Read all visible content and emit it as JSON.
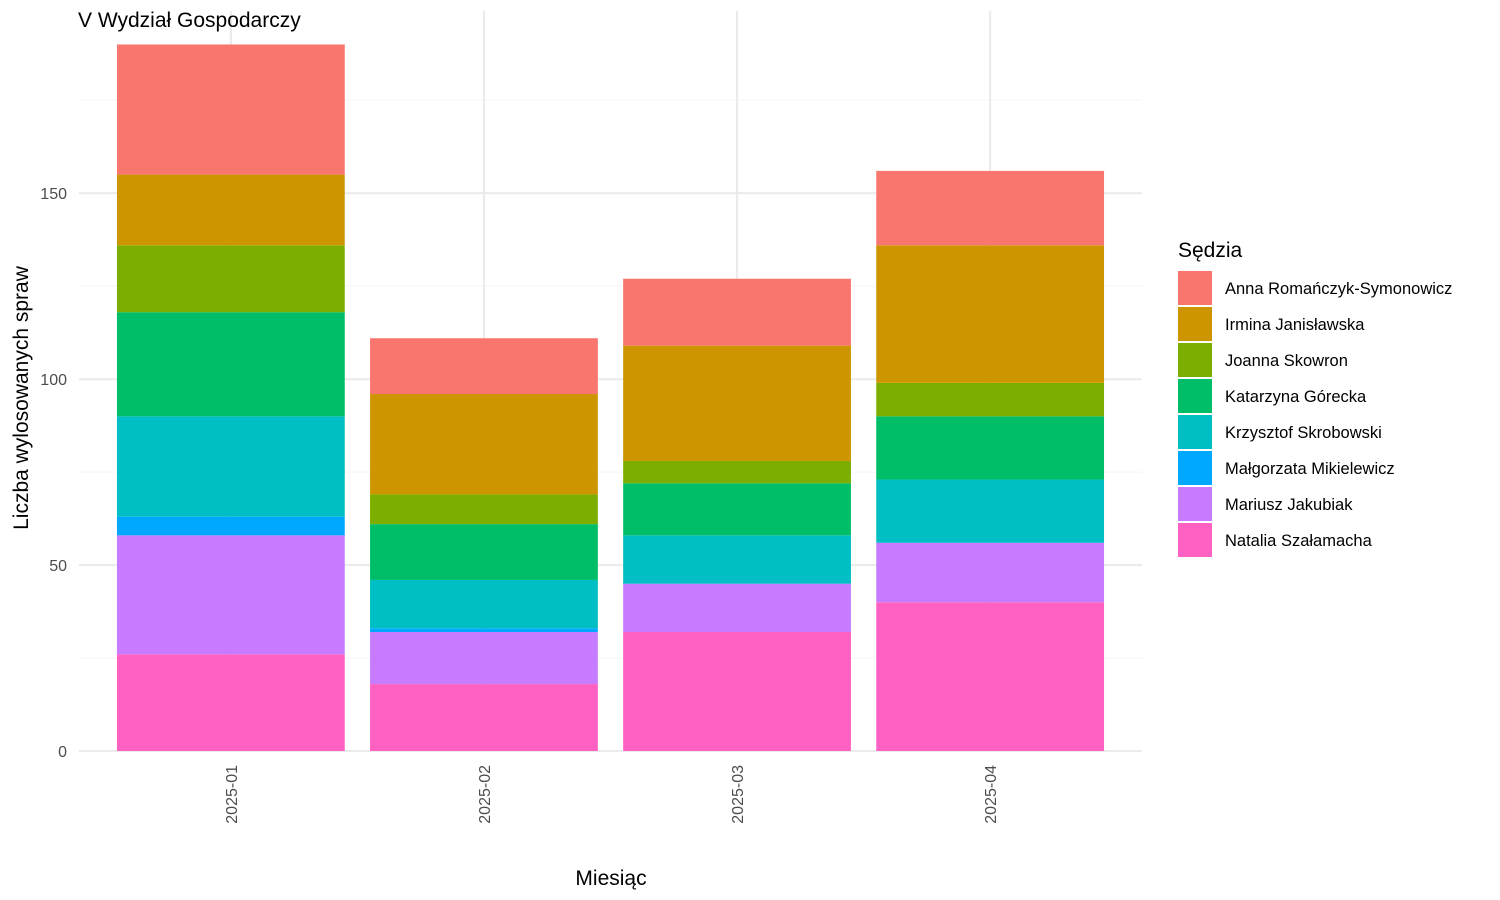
{
  "chart_data": {
    "type": "bar",
    "stacked": true,
    "title": "V Wydział Gospodarczy",
    "xlabel": "Miesiąc",
    "ylabel": "Liczba wylosowanych spraw",
    "categories": [
      "2025-01",
      "2025-02",
      "2025-03",
      "2025-04"
    ],
    "ylim": [
      0,
      199
    ],
    "yticks": [
      0,
      50,
      100,
      150
    ],
    "grid": true,
    "legend": {
      "title": "Sędzia",
      "position": "right"
    },
    "series": [
      {
        "name": "Natalia Szałamacha",
        "color": "#FF61C3",
        "values": [
          26,
          18,
          32,
          40
        ]
      },
      {
        "name": "Mariusz Jakubiak",
        "color": "#C77CFF",
        "values": [
          32,
          14,
          13,
          16
        ]
      },
      {
        "name": "Małgorzata Mikielewicz",
        "color": "#00A9FF",
        "values": [
          5,
          1,
          0,
          0
        ]
      },
      {
        "name": "Krzysztof Skrobowski",
        "color": "#00BFC4",
        "values": [
          27,
          13,
          13,
          17
        ]
      },
      {
        "name": "Katarzyna Górecka",
        "color": "#00BE67",
        "values": [
          28,
          15,
          14,
          17
        ]
      },
      {
        "name": "Joanna Skowron",
        "color": "#7CAE00",
        "values": [
          18,
          8,
          6,
          9
        ]
      },
      {
        "name": "Irmina Janisławska",
        "color": "#CD9600",
        "values": [
          19,
          27,
          31,
          37
        ]
      },
      {
        "name": "Anna Romańczyk-Symonowicz",
        "color": "#F8766D",
        "values": [
          35,
          15,
          18,
          20
        ]
      }
    ],
    "legend_order": [
      "Anna Romańczyk-Symonowicz",
      "Irmina Janisławska",
      "Joanna Skowron",
      "Katarzyna Górecka",
      "Krzysztof Skrobowski",
      "Małgorzata Mikielewicz",
      "Mariusz Jakubiak",
      "Natalia Szałamacha"
    ]
  }
}
